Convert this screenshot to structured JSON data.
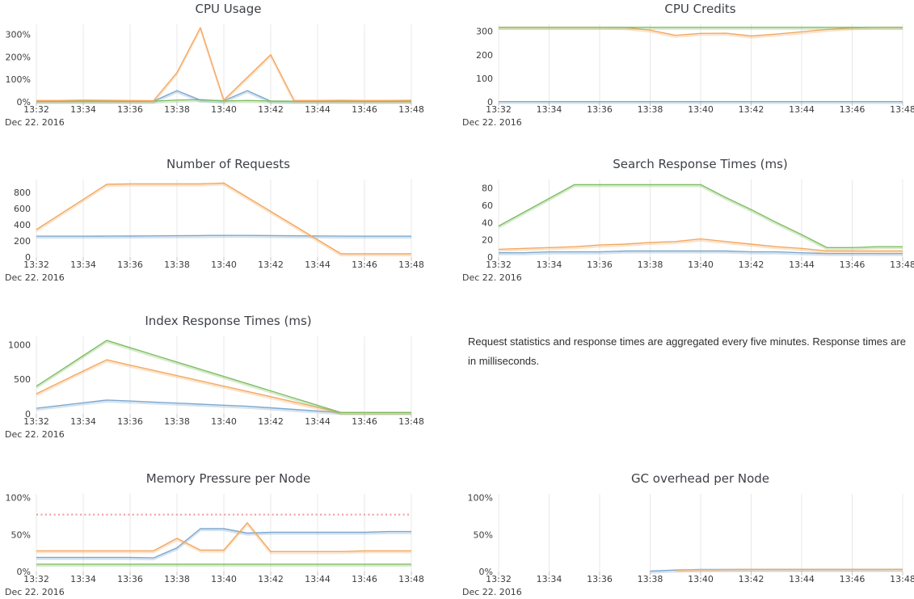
{
  "date_label": "Dec 22. 2016",
  "x_tick_labels": [
    "13:32",
    "13:34",
    "13:36",
    "13:38",
    "13:40",
    "13:42",
    "13:44",
    "13:46",
    "13:48"
  ],
  "note": {
    "text": "Request statistics and response times are aggregated every five minutes. Response times are in milliseconds."
  },
  "colors": {
    "blue": "#7da7cd",
    "orange": "#f2a85f",
    "green": "#7fbd62",
    "red": "#ee9896",
    "grid": "#e8e8e8",
    "tick": "#c6c6c6"
  },
  "chart_data": [
    {
      "type": "line",
      "title": "CPU Usage",
      "xlabel": "Dec 22. 2016",
      "x": [
        "13:32",
        "13:33",
        "13:34",
        "13:35",
        "13:36",
        "13:37",
        "13:38",
        "13:39",
        "13:40",
        "13:41",
        "13:42",
        "13:43",
        "13:44",
        "13:45",
        "13:46",
        "13:47",
        "13:48"
      ],
      "ylim": [
        0,
        345
      ],
      "y_ticks": [
        {
          "v": 0,
          "label": "0%"
        },
        {
          "v": 100,
          "label": "100%"
        },
        {
          "v": 200,
          "label": "200%"
        },
        {
          "v": 300,
          "label": "300%"
        }
      ],
      "series": [
        {
          "color": "blue",
          "values": [
            2,
            2,
            2,
            2,
            2,
            3,
            50,
            8,
            5,
            50,
            3,
            2,
            2,
            2,
            2,
            2,
            2
          ]
        },
        {
          "color": "green",
          "values": [
            3,
            3,
            3,
            3,
            3,
            3,
            8,
            10,
            4,
            6,
            4,
            3,
            3,
            3,
            3,
            3,
            3
          ]
        },
        {
          "color": "orange",
          "values": [
            6,
            6,
            8,
            7,
            6,
            5,
            130,
            330,
            8,
            109,
            210,
            6,
            6,
            7,
            6,
            6,
            7
          ]
        }
      ]
    },
    {
      "type": "line",
      "title": "CPU Credits",
      "xlabel": "Dec 22. 2016",
      "x": [
        "13:32",
        "13:33",
        "13:34",
        "13:35",
        "13:36",
        "13:37",
        "13:38",
        "13:39",
        "13:40",
        "13:41",
        "13:42",
        "13:43",
        "13:44",
        "13:45",
        "13:46",
        "13:47",
        "13:48"
      ],
      "ylim": [
        0,
        330
      ],
      "y_ticks": [
        {
          "v": 0,
          "label": "0"
        },
        {
          "v": 100,
          "label": "100"
        },
        {
          "v": 200,
          "label": "200"
        },
        {
          "v": 300,
          "label": "300"
        }
      ],
      "series": [
        {
          "color": "blue",
          "values": [
            1,
            1,
            1,
            1,
            1,
            1,
            1,
            1,
            1,
            1,
            1,
            1,
            1,
            1,
            1,
            1,
            1
          ]
        },
        {
          "color": "orange",
          "values": [
            317,
            317,
            317,
            317,
            317,
            316,
            305,
            283,
            291,
            292,
            280,
            288,
            298,
            308,
            315,
            317,
            317
          ]
        },
        {
          "color": "green",
          "values": [
            317,
            317,
            317,
            317,
            317,
            317,
            317,
            317,
            317,
            317,
            317,
            317,
            317,
            317,
            317,
            317,
            317
          ]
        }
      ]
    },
    {
      "type": "line",
      "title": "Number of Requests",
      "xlabel": "Dec 22. 2016",
      "x": [
        "13:32",
        "13:33",
        "13:34",
        "13:35",
        "13:36",
        "13:37",
        "13:38",
        "13:39",
        "13:40",
        "13:41",
        "13:42",
        "13:43",
        "13:44",
        "13:45",
        "13:46",
        "13:47",
        "13:48"
      ],
      "ylim": [
        0,
        960
      ],
      "y_ticks": [
        {
          "v": 0,
          "label": "0"
        },
        {
          "v": 200,
          "label": "200"
        },
        {
          "v": 400,
          "label": "400"
        },
        {
          "v": 600,
          "label": "600"
        },
        {
          "v": 800,
          "label": "800"
        }
      ],
      "series": [
        {
          "color": "blue",
          "values": [
            258,
            258,
            258,
            259,
            260,
            262,
            264,
            266,
            268,
            268,
            266,
            263,
            261,
            259,
            258,
            258,
            258
          ]
        },
        {
          "color": "orange",
          "values": [
            340,
            527,
            713,
            900,
            905,
            905,
            905,
            905,
            915,
            740,
            565,
            390,
            215,
            40,
            40,
            40,
            40
          ]
        }
      ]
    },
    {
      "type": "line",
      "title": "Search Response Times (ms)",
      "xlabel": "Dec 22. 2016",
      "x": [
        "13:32",
        "13:33",
        "13:34",
        "13:35",
        "13:36",
        "13:37",
        "13:38",
        "13:39",
        "13:40",
        "13:41",
        "13:42",
        "13:43",
        "13:44",
        "13:45",
        "13:46",
        "13:47",
        "13:48"
      ],
      "ylim": [
        0,
        90
      ],
      "y_ticks": [
        {
          "v": 0,
          "label": "0"
        },
        {
          "v": 20,
          "label": "20"
        },
        {
          "v": 40,
          "label": "40"
        },
        {
          "v": 60,
          "label": "60"
        },
        {
          "v": 80,
          "label": "80"
        }
      ],
      "series": [
        {
          "color": "blue",
          "values": [
            5,
            5,
            6,
            6,
            6,
            7,
            7,
            7,
            7,
            7,
            6,
            6,
            5,
            4,
            4,
            4,
            4
          ]
        },
        {
          "color": "orange",
          "values": [
            9,
            10,
            11,
            12,
            14,
            15,
            17,
            18,
            21,
            18,
            15,
            12,
            10,
            7,
            7,
            7,
            7
          ]
        },
        {
          "color": "green",
          "values": [
            36,
            52,
            68,
            84,
            84,
            84,
            84,
            84,
            84,
            69,
            55,
            40,
            26,
            11,
            11,
            12,
            12
          ]
        }
      ]
    },
    {
      "type": "line",
      "title": "Index Response Times (ms)",
      "xlabel": "Dec 22. 2016",
      "x": [
        "13:32",
        "13:33",
        "13:34",
        "13:35",
        "13:36",
        "13:37",
        "13:38",
        "13:39",
        "13:40",
        "13:41",
        "13:42",
        "13:43",
        "13:44",
        "13:45",
        "13:46",
        "13:47",
        "13:48"
      ],
      "ylim": [
        0,
        1120
      ],
      "y_ticks": [
        {
          "v": 0,
          "label": "0"
        },
        {
          "v": 500,
          "label": "500"
        },
        {
          "v": 1000,
          "label": "1000"
        }
      ],
      "series": [
        {
          "color": "blue",
          "values": [
            80,
            120,
            160,
            200,
            185,
            170,
            155,
            140,
            125,
            110,
            88,
            64,
            42,
            20,
            20,
            20,
            20
          ]
        },
        {
          "color": "orange",
          "values": [
            290,
            455,
            620,
            780,
            704,
            628,
            552,
            476,
            400,
            324,
            248,
            172,
            96,
            20,
            20,
            20,
            20
          ]
        },
        {
          "color": "green",
          "values": [
            400,
            620,
            840,
            1060,
            956,
            852,
            748,
            644,
            540,
            436,
            332,
            228,
            124,
            20,
            20,
            20,
            20
          ]
        }
      ]
    },
    {
      "type": "line",
      "title": "Memory Pressure per Node",
      "xlabel": "Dec 22. 2016",
      "x": [
        "13:32",
        "13:33",
        "13:34",
        "13:35",
        "13:36",
        "13:37",
        "13:38",
        "13:39",
        "13:40",
        "13:41",
        "13:42",
        "13:43",
        "13:44",
        "13:45",
        "13:46",
        "13:47",
        "13:48"
      ],
      "ylim": [
        0,
        105
      ],
      "y_ticks": [
        {
          "v": 0,
          "label": "0%"
        },
        {
          "v": 50,
          "label": "50%"
        },
        {
          "v": 100,
          "label": "100%"
        }
      ],
      "series": [
        {
          "color": "green",
          "values": [
            10,
            10,
            10,
            10,
            10,
            10,
            10,
            10,
            10,
            10,
            10,
            10,
            10,
            10,
            10,
            10,
            10
          ]
        },
        {
          "color": "blue",
          "values": [
            19,
            19,
            19,
            19,
            19,
            18.5,
            32,
            58,
            58,
            52,
            53,
            53,
            53,
            53,
            53,
            54,
            54
          ]
        },
        {
          "color": "orange",
          "values": [
            28,
            28,
            28,
            28,
            28,
            28,
            45,
            29,
            29,
            66,
            27,
            27,
            27,
            27,
            28,
            28,
            28
          ]
        },
        {
          "color": "red",
          "style": "dotted",
          "values": [
            77,
            77,
            77,
            77,
            77,
            77,
            77,
            77,
            77,
            77,
            77,
            77,
            77,
            77,
            77,
            77,
            77
          ]
        }
      ]
    },
    {
      "type": "line",
      "title": "GC overhead per Node",
      "xlabel": "Dec 22. 2016",
      "x": [
        "13:32",
        "13:33",
        "13:34",
        "13:35",
        "13:36",
        "13:37",
        "13:38",
        "13:39",
        "13:40",
        "13:41",
        "13:42",
        "13:43",
        "13:44",
        "13:45",
        "13:46",
        "13:47",
        "13:48"
      ],
      "ylim": [
        0,
        105
      ],
      "y_ticks": [
        {
          "v": 0,
          "label": "0%"
        },
        {
          "v": 50,
          "label": "50%"
        },
        {
          "v": 100,
          "label": "100%"
        }
      ],
      "series": [
        {
          "color": "blue",
          "values": [
            null,
            null,
            null,
            null,
            null,
            null,
            0.5,
            2,
            2.8,
            2.8,
            2.8,
            2.8,
            2.8,
            2.8,
            2.8,
            2.8,
            3
          ]
        },
        {
          "color": "orange",
          "values": [
            null,
            null,
            null,
            null,
            null,
            null,
            null,
            2.2,
            2.4,
            2.6,
            3,
            3,
            3,
            3,
            3,
            3,
            3
          ]
        }
      ]
    }
  ]
}
